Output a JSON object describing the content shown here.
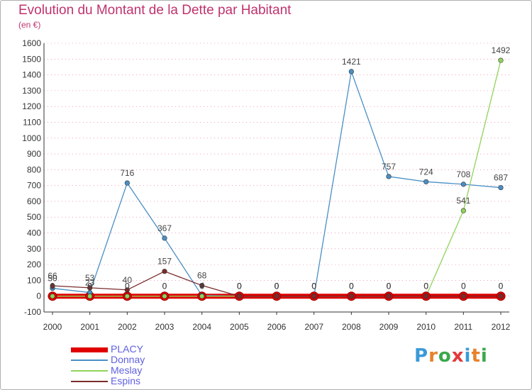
{
  "title": "Evolution du Montant de la Dette par Habitant",
  "subtitle": "(en €)",
  "colors": {
    "title": "#c0336e",
    "grid": "#e04070",
    "axis": "#333333"
  },
  "logo": {
    "text": "Proxiti",
    "letters": [
      "P",
      "r",
      "o",
      "x",
      "i",
      "t",
      "i"
    ],
    "colors": [
      "#3a9ad9",
      "#e8822a",
      "#3aa84b",
      "#e23a3a",
      "#3a9ad9",
      "#e8822a",
      "#3aa84b"
    ]
  },
  "chart_data": {
    "type": "line",
    "title": "Evolution du Montant de la Dette par Habitant",
    "ylabel": "(en €)",
    "xlabel": "",
    "x": [
      "2000",
      "2001",
      "2002",
      "2003",
      "2004",
      "2005",
      "2006",
      "2007",
      "2008",
      "2009",
      "2010",
      "2011",
      "2012"
    ],
    "ylim": [
      -100,
      1600
    ],
    "yticks": [
      -100,
      0,
      100,
      200,
      300,
      400,
      500,
      600,
      700,
      800,
      900,
      1000,
      1100,
      1200,
      1300,
      1400,
      1500,
      1600
    ],
    "grid": "dashed horizontal",
    "legend": "bottom-left",
    "series": [
      {
        "name": "PLACY",
        "color": "#e00000",
        "values": [
          0,
          0,
          0,
          0,
          0,
          0,
          0,
          0,
          0,
          0,
          0,
          0,
          0
        ],
        "labels": [
          "0",
          "0",
          "0",
          "0",
          "0",
          "0",
          "0",
          "0",
          "0",
          "0",
          "0",
          "0",
          "0"
        ]
      },
      {
        "name": "Donnay",
        "color": "#4a8fc4",
        "values": [
          50,
          23,
          716,
          367,
          4,
          0,
          0,
          0,
          1421,
          757,
          724,
          708,
          687
        ],
        "labels": [
          "50",
          "23",
          "716",
          "367",
          "4",
          "0",
          "0",
          "0",
          "1421",
          "757",
          "724",
          "708",
          "687"
        ]
      },
      {
        "name": "Meslay",
        "color": "#8fd45a",
        "values": [
          0,
          0,
          0,
          0,
          0,
          0,
          0,
          0,
          0,
          0,
          0,
          541,
          1492
        ],
        "labels": [
          "0",
          "0",
          "0",
          "0",
          "0",
          "0",
          "0",
          "0",
          "0",
          "0",
          "0",
          "541",
          "1492"
        ]
      },
      {
        "name": "Espins",
        "color": "#7a2c2c",
        "values": [
          66,
          53,
          40,
          157,
          68,
          0,
          0,
          0,
          0,
          0,
          0,
          0,
          0
        ],
        "labels": [
          "66",
          "53",
          "40",
          "157",
          "68",
          "0",
          "0",
          "0",
          "0",
          "0",
          "0",
          "0",
          "0"
        ]
      }
    ]
  }
}
